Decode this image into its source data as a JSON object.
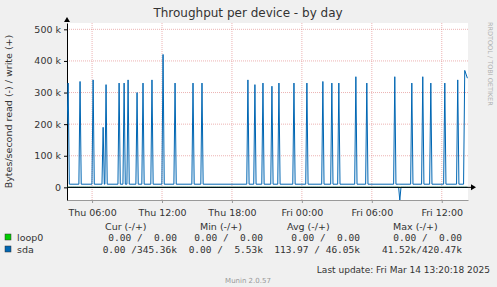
{
  "chart_data": {
    "type": "line",
    "title": "Throughput per device - by day",
    "y_label": "Bytes/second read (-) / write (+)",
    "watermark": "RRDTOOL / TOBI OETIKER",
    "footer": "Munin 2.0.57",
    "last_update": "Last update: Fri Mar 14 13:20:18 2025",
    "grid": true,
    "xlim": [
      3.85,
      38.25
    ],
    "xticks": [
      {
        "value": 6,
        "label": "Thu 06:00"
      },
      {
        "value": 12,
        "label": "Thu 12:00"
      },
      {
        "value": 18,
        "label": "Thu 18:00"
      },
      {
        "value": 24,
        "label": "Fri 00:00"
      },
      {
        "value": 30,
        "label": "Fri 06:00"
      },
      {
        "value": 36,
        "label": "Fri 12:00"
      }
    ],
    "ylim": [
      -40000,
      520000
    ],
    "yticks": [
      0,
      {
        "value": 100000,
        "label": "100 k"
      },
      {
        "value": 200000,
        "label": "200 k"
      },
      {
        "value": 300000,
        "label": "300 k"
      },
      {
        "value": 400000,
        "label": "400 k"
      },
      {
        "value": 500000,
        "label": "500 k"
      }
    ],
    "stats_columns": [
      "Cur (-/+)",
      "Min (-/+)",
      "Avg (-/+)",
      "Max (-/+)"
    ],
    "x": [
      3.86,
      3.95,
      4.05,
      4.87,
      4.97,
      5.07,
      5.99,
      6.09,
      6.19,
      6.85,
      6.95,
      7.05,
      7.1,
      7.2,
      7.3,
      8.22,
      8.32,
      8.42,
      8.65,
      8.75,
      8.85,
      8.99,
      9.09,
      9.19,
      9.76,
      9.86,
      9.96,
      10.27,
      10.37,
      10.47,
      11.04,
      11.14,
      11.24,
      11.99,
      12.09,
      12.19,
      13.02,
      13.12,
      13.22,
      14.56,
      14.66,
      14.76,
      15.33,
      15.43,
      15.53,
      19.27,
      19.37,
      19.47,
      19.87,
      19.97,
      20.07,
      20.56,
      20.66,
      20.76,
      21.33,
      21.43,
      21.53,
      21.93,
      22.03,
      22.13,
      23.22,
      23.32,
      23.42,
      24.33,
      24.43,
      24.53,
      25.7,
      25.8,
      25.9,
      26.47,
      26.57,
      26.67,
      27.07,
      27.17,
      27.27,
      28.53,
      28.63,
      28.73,
      29.47,
      29.57,
      29.67,
      31.87,
      31.97,
      32.07,
      32.3,
      32.4,
      32.5,
      33.33,
      33.43,
      33.53,
      34.27,
      34.37,
      34.47,
      34.96,
      35.06,
      35.16,
      36.16,
      36.26,
      36.36,
      37.27,
      37.37,
      37.47,
      37.87,
      37.97,
      38.2
    ],
    "series": [
      {
        "name": "loop0",
        "color": "#00cc00",
        "stats": [
          "0.00 /  0.00",
          "0.00 /  0.00",
          "0.00 /  0.00",
          "0.00 /  0.00"
        ],
        "values": [
          0,
          0,
          0,
          0,
          0,
          0,
          0,
          0,
          0,
          0,
          0,
          0,
          0,
          0,
          0,
          0,
          0,
          0,
          0,
          0,
          0,
          0,
          0,
          0,
          0,
          0,
          0,
          0,
          0,
          0,
          0,
          0,
          0,
          0,
          0,
          0,
          0,
          0,
          0,
          0,
          0,
          0,
          0,
          0,
          0,
          0,
          0,
          0,
          0,
          0,
          0,
          0,
          0,
          0,
          0,
          0,
          0,
          0,
          0,
          0,
          0,
          0,
          0,
          0,
          0,
          0,
          0,
          0,
          0,
          0,
          0,
          0,
          0,
          0,
          0,
          0,
          0,
          0,
          0,
          0,
          0,
          0,
          0,
          0,
          0,
          0,
          0,
          0,
          0,
          0,
          0,
          0,
          0,
          0,
          0,
          0,
          0,
          0,
          0,
          0,
          0,
          0,
          0,
          0,
          0
        ]
      },
      {
        "name": "sda",
        "color": "#0066b3",
        "stats": [
          "0.00 /345.36k",
          "0.00 /  5.53k",
          "113.97 / 46.05k",
          "41.52k/420.47k"
        ],
        "values": [
          200000,
          330000,
          10000,
          10000,
          335000,
          10000,
          10000,
          340000,
          10000,
          10000,
          190000,
          10000,
          10000,
          325000,
          10000,
          10000,
          330000,
          10000,
          10000,
          330000,
          10000,
          10000,
          340000,
          10000,
          10000,
          300000,
          10000,
          10000,
          330000,
          10000,
          10000,
          340000,
          10000,
          10000,
          420470,
          10000,
          10000,
          330000,
          10000,
          10000,
          330000,
          10000,
          10000,
          330000,
          10000,
          10000,
          340000,
          10000,
          10000,
          325000,
          10000,
          10000,
          330000,
          10000,
          10000,
          320000,
          10000,
          10000,
          330000,
          10000,
          10000,
          330000,
          10000,
          10000,
          330000,
          10000,
          10000,
          335000,
          10000,
          10000,
          330000,
          10000,
          10000,
          330000,
          10000,
          10000,
          350000,
          10000,
          10000,
          330000,
          10000,
          10000,
          350000,
          10000,
          10000,
          10000,
          10000,
          10000,
          330000,
          10000,
          10000,
          350000,
          10000,
          10000,
          330000,
          10000,
          10000,
          330000,
          10000,
          10000,
          340000,
          10000,
          10000,
          370000,
          345360
        ],
        "read": [
          0,
          0,
          0,
          0,
          0,
          0,
          0,
          0,
          0,
          0,
          0,
          0,
          0,
          0,
          0,
          0,
          0,
          0,
          0,
          0,
          0,
          0,
          0,
          0,
          0,
          0,
          0,
          0,
          0,
          0,
          0,
          0,
          0,
          0,
          0,
          0,
          0,
          0,
          0,
          0,
          0,
          0,
          0,
          0,
          0,
          0,
          0,
          0,
          0,
          0,
          0,
          0,
          0,
          0,
          0,
          0,
          0,
          0,
          0,
          0,
          0,
          0,
          0,
          0,
          0,
          0,
          0,
          0,
          0,
          0,
          0,
          0,
          0,
          0,
          0,
          0,
          0,
          0,
          0,
          0,
          0,
          0,
          0,
          0,
          0,
          -41520,
          0,
          0,
          0,
          0,
          0,
          0,
          0,
          0,
          0,
          0,
          0,
          0,
          0,
          0,
          0,
          0,
          0,
          0,
          0
        ]
      }
    ]
  }
}
